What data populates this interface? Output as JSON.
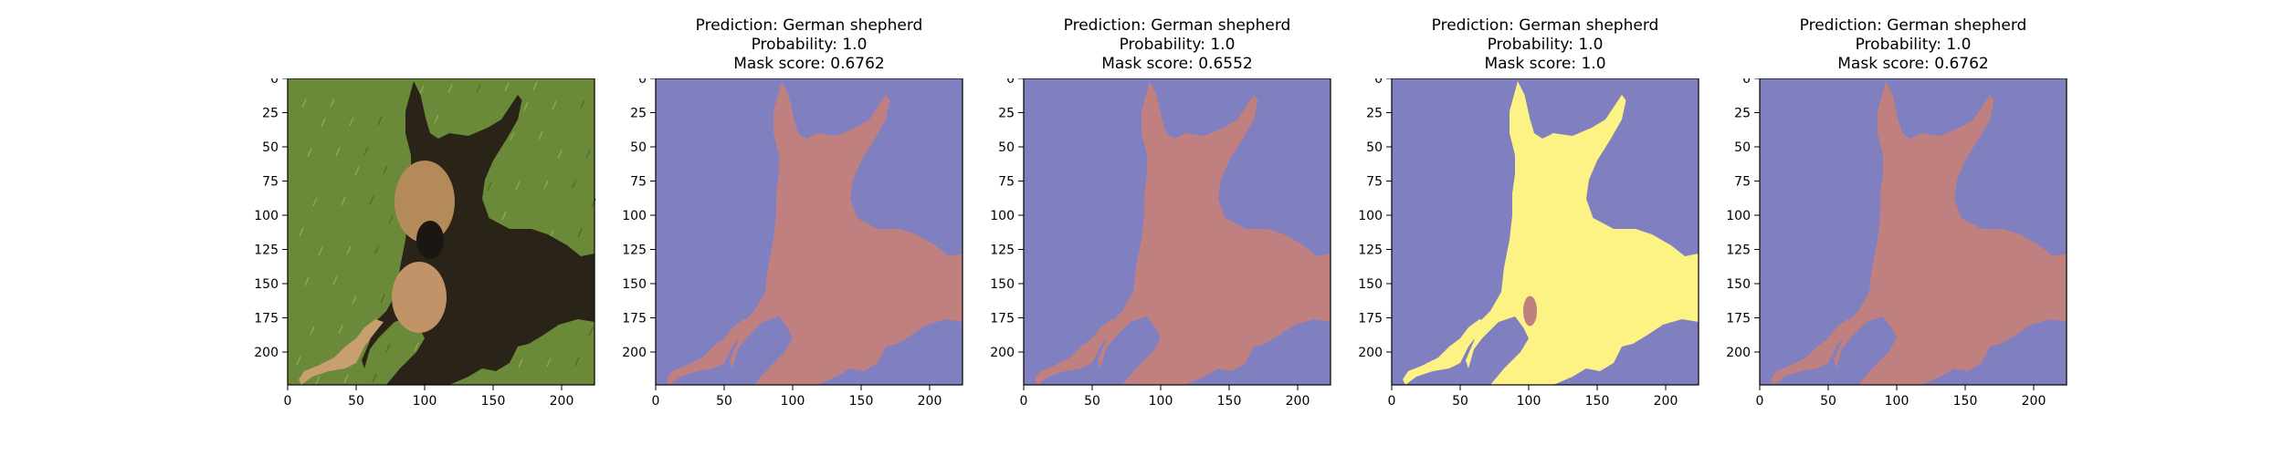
{
  "figure": {
    "panels": [
      {
        "kind": "photo",
        "title_lines": []
      },
      {
        "kind": "mask",
        "title_lines": [
          "Prediction: German shepherd",
          "Probability: 1.0",
          "Mask score: 0.6762"
        ]
      },
      {
        "kind": "mask",
        "title_lines": [
          "Prediction: German shepherd",
          "Probability: 1.0",
          "Mask score: 0.6552"
        ]
      },
      {
        "kind": "mask-highlight",
        "title_lines": [
          "Prediction: German shepherd",
          "Probability: 1.0",
          "Mask score: 1.0"
        ]
      },
      {
        "kind": "mask",
        "title_lines": [
          "Prediction: German shepherd",
          "Probability: 1.0",
          "Mask score: 0.6762"
        ]
      }
    ],
    "axes": {
      "xticks": [
        0,
        50,
        100,
        150,
        200
      ],
      "yticks": [
        0,
        25,
        50,
        75,
        100,
        125,
        150,
        175,
        200
      ],
      "image_size": 224
    },
    "colors": {
      "background": "#8080c0",
      "dog": "#c08080",
      "highlight": "#fdf284",
      "grass": "#6a8a3a"
    }
  }
}
